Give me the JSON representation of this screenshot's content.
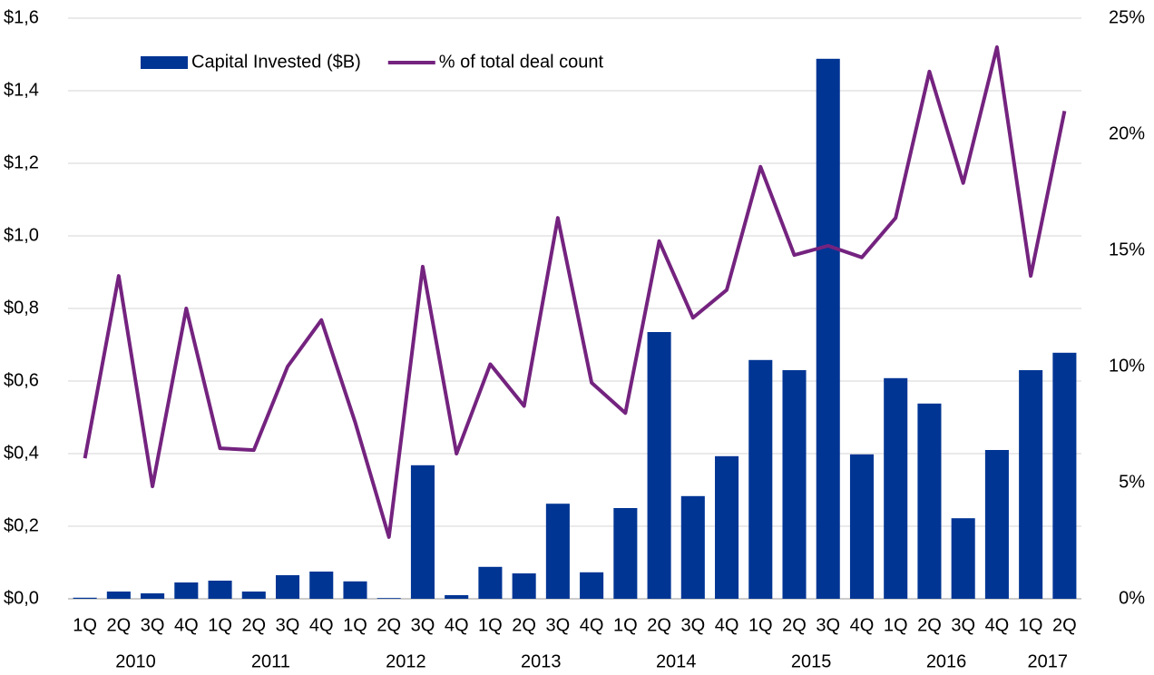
{
  "chart_data": {
    "type": "bar-line",
    "categories": [
      "1Q",
      "2Q",
      "3Q",
      "4Q",
      "1Q",
      "2Q",
      "3Q",
      "4Q",
      "1Q",
      "2Q",
      "3Q",
      "4Q",
      "1Q",
      "2Q",
      "3Q",
      "4Q",
      "1Q",
      "2Q",
      "3Q",
      "4Q",
      "1Q",
      "2Q",
      "3Q",
      "4Q",
      "1Q",
      "2Q",
      "3Q",
      "4Q",
      "1Q",
      "2Q"
    ],
    "years": [
      "2010",
      "2011",
      "2012",
      "2013",
      "2014",
      "2015",
      "2016",
      "2017"
    ],
    "series": [
      {
        "name": "Capital Invested ($B)",
        "type": "bar",
        "color": "#003594",
        "values": [
          0.003,
          0.02,
          0.015,
          0.045,
          0.05,
          0.02,
          0.065,
          0.075,
          0.048,
          0.002,
          0.368,
          0.01,
          0.088,
          0.07,
          0.262,
          0.073,
          0.25,
          0.735,
          0.283,
          0.393,
          0.658,
          0.63,
          1.488,
          0.398,
          0.608,
          0.538,
          0.222,
          0.41,
          0.63,
          0.678
        ]
      },
      {
        "name": "% of total deal count",
        "type": "line",
        "axis": "y2",
        "color": "#74237f",
        "values": [
          6.05,
          13.9,
          4.84,
          12.5,
          6.48,
          6.4,
          10.0,
          12.0,
          7.6,
          2.66,
          14.3,
          6.25,
          10.1,
          8.3,
          16.4,
          9.3,
          8.0,
          15.4,
          12.1,
          13.3,
          18.6,
          14.8,
          15.2,
          14.7,
          16.4,
          22.7,
          17.9,
          23.75,
          13.9,
          21.0
        ]
      }
    ],
    "ylim": [
      0,
      1.6
    ],
    "yticks": [
      {
        "value": 0,
        "label": "$0,0"
      },
      {
        "value": 0.2,
        "label": "$0,2"
      },
      {
        "value": 0.4,
        "label": "$0,4"
      },
      {
        "value": 0.6,
        "label": "$0,6"
      },
      {
        "value": 0.8,
        "label": "$0,8"
      },
      {
        "value": 1.0,
        "label": "$1,0"
      },
      {
        "value": 1.2,
        "label": "$1,2"
      },
      {
        "value": 1.4,
        "label": "$1,4"
      },
      {
        "value": 1.6,
        "label": "$1,6"
      }
    ],
    "y2lim": [
      0,
      25
    ],
    "y2ticks": [
      {
        "value": 0,
        "label": "0%"
      },
      {
        "value": 5,
        "label": "5%"
      },
      {
        "value": 10,
        "label": "10%"
      },
      {
        "value": 15,
        "label": "15%"
      },
      {
        "value": 20,
        "label": "20%"
      },
      {
        "value": 25,
        "label": "25%"
      }
    ],
    "grid": true,
    "legend": "top-left"
  }
}
